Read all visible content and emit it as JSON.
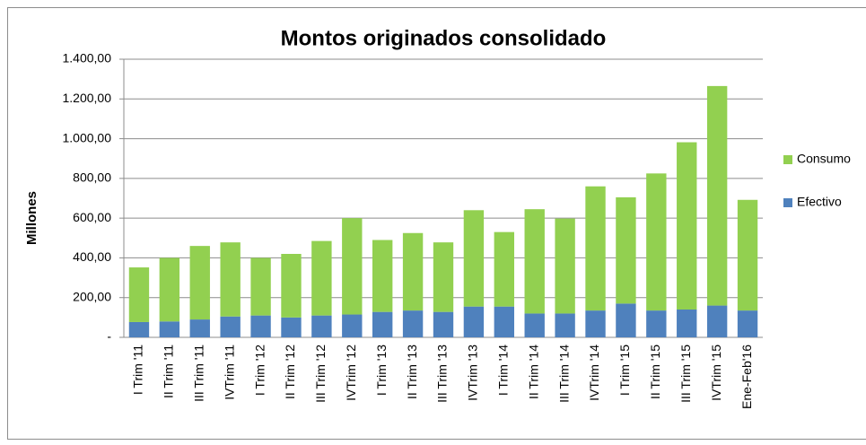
{
  "chart_data": {
    "type": "stacked_bar",
    "title": "Montos originados consolidado",
    "y_label": "Millones",
    "categories": [
      "I Trim '11",
      "II Trim '11",
      "III Trim '11",
      "IVTrim '11",
      "I Trim '12",
      "II Trim '12",
      "III Trim '12",
      "IVTrim '12",
      "I Trim '13",
      "II Trim '13",
      "III Trim '13",
      "IVTrim '13",
      "I Trim '14",
      "II Trim '14",
      "III Trim '14",
      "IVTrim '14",
      "I Trim '15",
      "II Trim '15",
      "III Trim '15",
      "IVTrim '15",
      "Ene-Feb'16"
    ],
    "series": [
      {
        "name": "Efectivo",
        "color": "#4f81bd",
        "values": [
          77,
          80,
          90,
          105,
          110,
          100,
          110,
          115,
          128,
          135,
          128,
          155,
          155,
          120,
          120,
          135,
          170,
          135,
          140,
          160,
          135
        ]
      },
      {
        "name": "Consumo",
        "color": "#92d050",
        "values": [
          275,
          320,
          370,
          373,
          290,
          320,
          375,
          485,
          362,
          390,
          350,
          485,
          375,
          525,
          478,
          625,
          535,
          690,
          842,
          1105,
          557
        ]
      }
    ],
    "ylim": [
      0,
      1400
    ],
    "yticks": [
      {
        "value": 0,
        "label": "-"
      },
      {
        "value": 200,
        "label": "200,00"
      },
      {
        "value": 400,
        "label": "400,00"
      },
      {
        "value": 600,
        "label": "600,00"
      },
      {
        "value": 800,
        "label": "800,00"
      },
      {
        "value": 1000,
        "label": "1.000,00"
      },
      {
        "value": 1200,
        "label": "1.200,00"
      },
      {
        "value": 1400,
        "label": "1.400,00"
      }
    ],
    "grid": true,
    "legend": "right"
  }
}
